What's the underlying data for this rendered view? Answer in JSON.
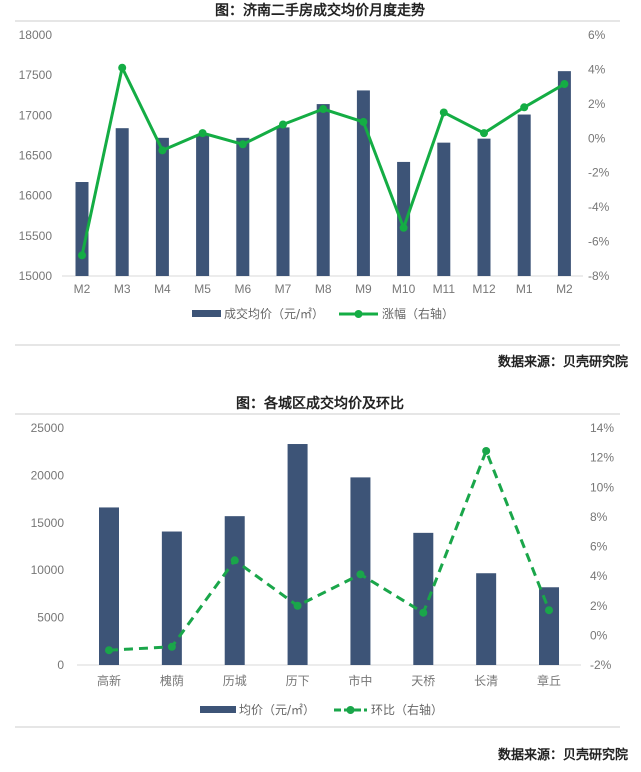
{
  "colors": {
    "bar": "#3d5477",
    "line": "#14ad44",
    "line2": "#1aa64a"
  },
  "chart_data": [
    {
      "type": "bar+line",
      "title": "图：济南二手房成交均价月度走势",
      "categories": [
        "M2",
        "M3",
        "M4",
        "M5",
        "M6",
        "M7",
        "M8",
        "M9",
        "M10",
        "M11",
        "M12",
        "M1",
        "M2"
      ],
      "series": [
        {
          "name": "成交均价（元/㎡）",
          "type": "bar",
          "axis": "left",
          "values": [
            16170,
            16840,
            16720,
            16760,
            16720,
            16850,
            17140,
            17310,
            16420,
            16660,
            16710,
            17010,
            17550
          ]
        },
        {
          "name": "涨幅（右轴）",
          "type": "line",
          "axis": "right",
          "values": [
            -6.8,
            4.1,
            -0.7,
            0.3,
            -0.35,
            0.8,
            1.7,
            0.95,
            -5.2,
            1.5,
            0.3,
            1.8,
            3.15
          ]
        }
      ],
      "ylim_left": [
        15000,
        18000
      ],
      "yticks_left": [
        "15000",
        "15500",
        "16000",
        "16500",
        "17000",
        "17500",
        "18000"
      ],
      "ylim_right": [
        -8,
        6
      ],
      "yticks_right": [
        "-8%",
        "-6%",
        "-4%",
        "-2%",
        "0%",
        "2%",
        "4%",
        "6%"
      ],
      "grid": false,
      "legend": "bottom",
      "source": "数据来源：贝壳研究院"
    },
    {
      "type": "bar+line",
      "title": "图：各城区成交均价及环比",
      "categories": [
        "高新",
        "槐荫",
        "历城",
        "历下",
        "市中",
        "天桥",
        "长清",
        "章丘"
      ],
      "series": [
        {
          "name": "均价（元/㎡）",
          "type": "bar",
          "axis": "left",
          "values": [
            16620,
            14080,
            15700,
            23310,
            19790,
            13940,
            9680,
            8200
          ]
        },
        {
          "name": "环比（右轴）",
          "type": "line-dashed",
          "axis": "right",
          "values": [
            -1.0,
            -0.77,
            5.07,
            2.0,
            4.12,
            1.53,
            12.45,
            1.7
          ]
        }
      ],
      "ylim_left": [
        0,
        25000
      ],
      "yticks_left": [
        "0",
        "5000",
        "10000",
        "15000",
        "20000",
        "25000"
      ],
      "ylim_right": [
        -2,
        14
      ],
      "yticks_right": [
        "-2%",
        "0%",
        "2%",
        "4%",
        "6%",
        "8%",
        "10%",
        "12%",
        "14%"
      ],
      "grid": false,
      "legend": "bottom",
      "source": "数据来源：贝壳研究院"
    }
  ]
}
